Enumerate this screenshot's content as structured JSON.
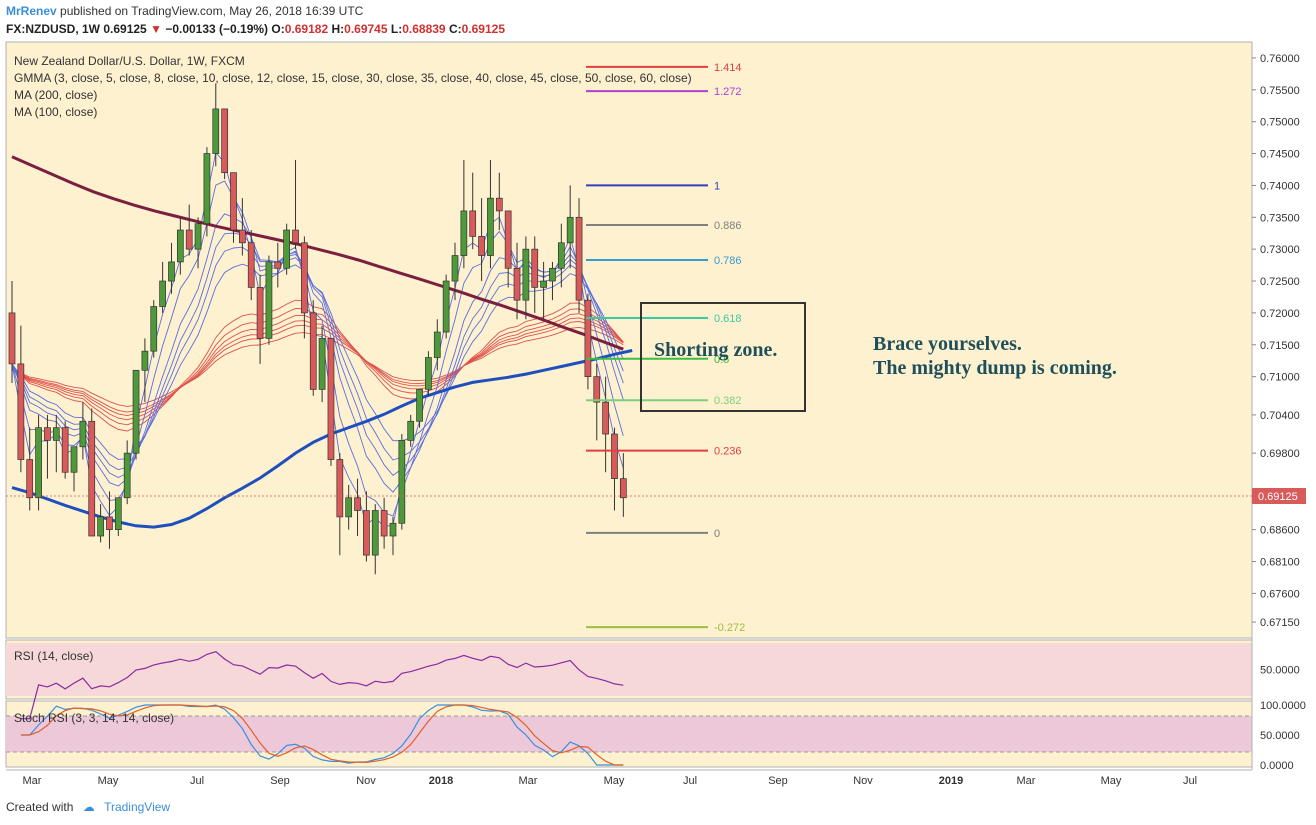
{
  "header": {
    "user": "MrRenev",
    "published": "published on TradingView.com, May 26, 2018 16:39 UTC",
    "symbol": "FX:NZDUSD, 1W",
    "last": "0.69125",
    "change": "−0.00133 (−0.19%)",
    "open_label": "O:",
    "open": "0.69182",
    "high_label": "H:",
    "high": "0.69745",
    "low_label": "L:",
    "low": "0.68839",
    "close_label": "C:",
    "close": "0.69125"
  },
  "legend": {
    "title": "New Zealand Dollar/U.S. Dollar, 1W, FXCM",
    "gmma": "GMMA (3, close, 5, close, 8, close, 10, close, 12, close, 15, close, 30, close, 35, close, 40, close, 45, close, 50, close, 60, close)",
    "ma200": "MA (200, close)",
    "ma100": "MA (100, close)"
  },
  "annotations": {
    "zone": "Shorting zone.",
    "note1": "Brace yourselves.",
    "note2": "The mighty dump is coming."
  },
  "rsi_label": "RSI (14, close)",
  "stoch_label": "Stoch RSI (3, 3, 14, 14, close)",
  "price_badge": "0.69125",
  "footer": {
    "created": "Created with",
    "brand": "TradingView"
  },
  "colors": {
    "background": "#fdf1cf",
    "up": "#4e9a3a",
    "down": "#d85a5a",
    "ma200": "#7b1f3f",
    "ma100": "#1f4fbf",
    "gmma_short": "#5a6ee0",
    "gmma_long": "#e0504a"
  },
  "chart_data": {
    "type": "candlestick",
    "title": "New Zealand Dollar/U.S. Dollar, 1W, FXCM",
    "x_ticks": [
      "Mar",
      "May",
      "Jul",
      "Sep",
      "Nov",
      "2018",
      "Mar",
      "May",
      "Jul",
      "Sep",
      "Nov",
      "2019",
      "Mar",
      "May",
      "Jul"
    ],
    "y_ticks": [
      "0.76000",
      "0.75500",
      "0.75000",
      "0.74500",
      "0.74000",
      "0.73500",
      "0.73000",
      "0.72500",
      "0.72000",
      "0.71500",
      "0.71000",
      "0.70400",
      "0.69800",
      "0.69200",
      "0.68600",
      "0.68100",
      "0.67600",
      "0.67150"
    ],
    "ylim": [
      0.669,
      0.7625
    ],
    "candles": [
      [
        0.72,
        0.725,
        0.709,
        0.712
      ],
      [
        0.712,
        0.718,
        0.695,
        0.697
      ],
      [
        0.697,
        0.702,
        0.689,
        0.691
      ],
      [
        0.691,
        0.704,
        0.689,
        0.702
      ],
      [
        0.702,
        0.704,
        0.694,
        0.7
      ],
      [
        0.7,
        0.704,
        0.695,
        0.702
      ],
      [
        0.702,
        0.703,
        0.694,
        0.695
      ],
      [
        0.695,
        0.699,
        0.692,
        0.699
      ],
      [
        0.699,
        0.706,
        0.697,
        0.703
      ],
      [
        0.703,
        0.705,
        0.685,
        0.685
      ],
      [
        0.685,
        0.69,
        0.684,
        0.688
      ],
      [
        0.688,
        0.692,
        0.683,
        0.686
      ],
      [
        0.686,
        0.691,
        0.685,
        0.691
      ],
      [
        0.691,
        0.7,
        0.69,
        0.698
      ],
      [
        0.698,
        0.711,
        0.697,
        0.711
      ],
      [
        0.711,
        0.716,
        0.706,
        0.714
      ],
      [
        0.714,
        0.722,
        0.713,
        0.721
      ],
      [
        0.721,
        0.728,
        0.72,
        0.725
      ],
      [
        0.725,
        0.731,
        0.723,
        0.728
      ],
      [
        0.728,
        0.735,
        0.726,
        0.733
      ],
      [
        0.733,
        0.737,
        0.729,
        0.73
      ],
      [
        0.73,
        0.735,
        0.727,
        0.734
      ],
      [
        0.734,
        0.746,
        0.732,
        0.745
      ],
      [
        0.745,
        0.756,
        0.743,
        0.752
      ],
      [
        0.752,
        0.752,
        0.741,
        0.742
      ],
      [
        0.742,
        0.742,
        0.731,
        0.733
      ],
      [
        0.733,
        0.738,
        0.729,
        0.731
      ],
      [
        0.731,
        0.733,
        0.722,
        0.724
      ],
      [
        0.724,
        0.726,
        0.712,
        0.716
      ],
      [
        0.716,
        0.729,
        0.715,
        0.728
      ],
      [
        0.728,
        0.731,
        0.724,
        0.727
      ],
      [
        0.727,
        0.734,
        0.726,
        0.733
      ],
      [
        0.733,
        0.744,
        0.73,
        0.731
      ],
      [
        0.731,
        0.732,
        0.716,
        0.72
      ],
      [
        0.72,
        0.722,
        0.707,
        0.708
      ],
      [
        0.708,
        0.718,
        0.706,
        0.716
      ],
      [
        0.716,
        0.716,
        0.696,
        0.697
      ],
      [
        0.697,
        0.698,
        0.682,
        0.688
      ],
      [
        0.688,
        0.693,
        0.686,
        0.691
      ],
      [
        0.691,
        0.694,
        0.685,
        0.689
      ],
      [
        0.689,
        0.692,
        0.681,
        0.682
      ],
      [
        0.682,
        0.69,
        0.679,
        0.689
      ],
      [
        0.689,
        0.691,
        0.683,
        0.685
      ],
      [
        0.685,
        0.688,
        0.682,
        0.687
      ],
      [
        0.687,
        0.701,
        0.686,
        0.7
      ],
      [
        0.7,
        0.704,
        0.699,
        0.703
      ],
      [
        0.703,
        0.708,
        0.702,
        0.708
      ],
      [
        0.708,
        0.714,
        0.707,
        0.713
      ],
      [
        0.713,
        0.719,
        0.711,
        0.717
      ],
      [
        0.717,
        0.726,
        0.716,
        0.725
      ],
      [
        0.725,
        0.731,
        0.722,
        0.729
      ],
      [
        0.729,
        0.744,
        0.727,
        0.736
      ],
      [
        0.736,
        0.742,
        0.73,
        0.732
      ],
      [
        0.732,
        0.738,
        0.725,
        0.729
      ],
      [
        0.729,
        0.744,
        0.727,
        0.738
      ],
      [
        0.738,
        0.742,
        0.733,
        0.736
      ],
      [
        0.736,
        0.736,
        0.724,
        0.727
      ],
      [
        0.727,
        0.731,
        0.719,
        0.722
      ],
      [
        0.722,
        0.732,
        0.719,
        0.73
      ],
      [
        0.73,
        0.732,
        0.72,
        0.724
      ],
      [
        0.724,
        0.728,
        0.719,
        0.725
      ],
      [
        0.725,
        0.728,
        0.722,
        0.727
      ],
      [
        0.727,
        0.734,
        0.724,
        0.731
      ],
      [
        0.731,
        0.74,
        0.727,
        0.735
      ],
      [
        0.735,
        0.738,
        0.72,
        0.722
      ],
      [
        0.722,
        0.723,
        0.708,
        0.71
      ],
      [
        0.71,
        0.712,
        0.7,
        0.706
      ],
      [
        0.706,
        0.71,
        0.695,
        0.701
      ],
      [
        0.701,
        0.702,
        0.689,
        0.694
      ],
      [
        0.694,
        0.698,
        0.688,
        0.691
      ]
    ],
    "ma200": [
      0.7445,
      0.7431,
      0.7417,
      0.7403,
      0.739,
      0.7379,
      0.7369,
      0.736,
      0.7352,
      0.7344,
      0.7336,
      0.7329,
      0.7322,
      0.7315,
      0.7308,
      0.73,
      0.7292,
      0.7283,
      0.7273,
      0.7263,
      0.7253,
      0.7243,
      0.7233,
      0.7222,
      0.7212,
      0.7201,
      0.719,
      0.7178,
      0.7167,
      0.7155,
      0.7143
    ],
    "ma200_range": [
      0,
      69
    ],
    "ma100": [
      0.6926,
      0.6918,
      0.6908,
      0.6898,
      0.6889,
      0.688,
      0.6872,
      0.6866,
      0.6864,
      0.6868,
      0.6878,
      0.6893,
      0.691,
      0.6925,
      0.6941,
      0.696,
      0.698,
      0.6997,
      0.701,
      0.702,
      0.703,
      0.7041,
      0.7054,
      0.7066,
      0.7075,
      0.7084,
      0.7091,
      0.7095,
      0.7099,
      0.7104,
      0.711,
      0.7116,
      0.7122,
      0.7128,
      0.7135,
      0.7141
    ],
    "fib_levels": [
      {
        "label": "1.414",
        "value": 0.7586,
        "color": "#e04040"
      },
      {
        "label": "1.272",
        "value": 0.7548,
        "color": "#b040d0"
      },
      {
        "label": "1",
        "value": 0.74,
        "color": "#3040c0"
      },
      {
        "label": "0.886",
        "value": 0.7338,
        "color": "#808080"
      },
      {
        "label": "0.786",
        "value": 0.7283,
        "color": "#3a9ad0"
      },
      {
        "label": "0.618",
        "value": 0.7192,
        "color": "#3ac9a0"
      },
      {
        "label": "0.5",
        "value": 0.7128,
        "color": "#3ac040"
      },
      {
        "label": "0.382",
        "value": 0.7063,
        "color": "#7bd07b"
      },
      {
        "label": "0.236",
        "value": 0.6984,
        "color": "#e04040"
      },
      {
        "label": "0",
        "value": 0.6855,
        "color": "#808080"
      },
      {
        "label": "-0.272",
        "value": 0.6707,
        "color": "#9ac040"
      }
    ],
    "rsi": {
      "y_ticks": [
        "50.0000"
      ],
      "ylim": [
        20,
        80
      ]
    },
    "stoch_rsi": {
      "y_ticks": [
        "100.0000",
        "50.0000",
        "0.0000"
      ],
      "ylim": [
        0,
        100
      ],
      "bands": [
        20,
        80
      ]
    }
  }
}
